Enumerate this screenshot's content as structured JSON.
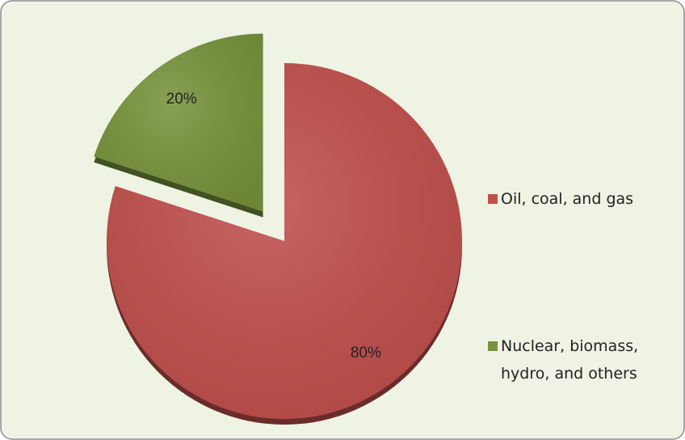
{
  "chart_data": {
    "type": "pie",
    "categories": [
      "Oil, coal, and gas",
      "Nuclear, biomass, hydro, and others"
    ],
    "values": [
      80,
      20
    ],
    "value_labels": [
      "80%",
      "20%"
    ],
    "colors": [
      "#c0504d",
      "#77933c"
    ],
    "legend": "right"
  }
}
